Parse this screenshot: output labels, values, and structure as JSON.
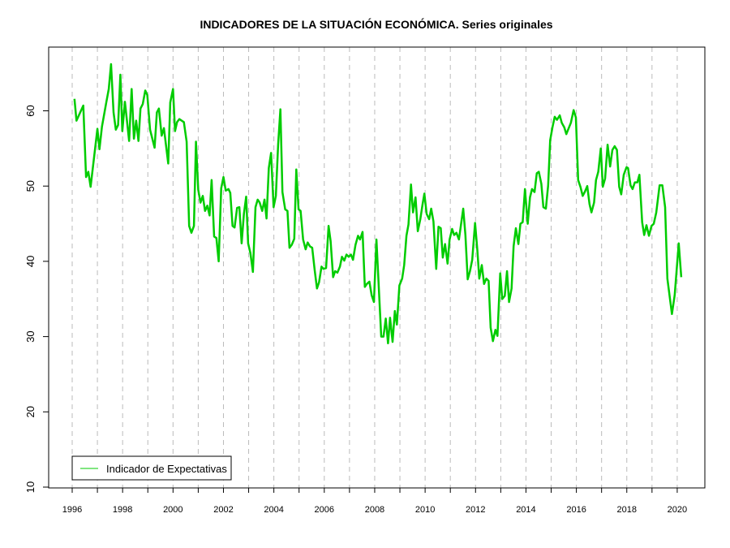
{
  "chart_data": {
    "type": "line",
    "title": "INDICADORES DE LA SITUACIÓN ECONÓMICA. Series originales",
    "xlabel": "",
    "ylabel": "",
    "xlim": [
      1995.06,
      2021.08
    ],
    "ylim": [
      10,
      68.6
    ],
    "x_ticks": [
      1996,
      1997,
      1998,
      1999,
      2000,
      2001,
      2002,
      2003,
      2004,
      2005,
      2006,
      2007,
      2008,
      2009,
      2010,
      2011,
      2012,
      2013,
      2014,
      2015,
      2016,
      2017,
      2018,
      2019,
      2020
    ],
    "x_tick_labels": [
      "1996",
      "1998",
      "2000",
      "2002",
      "2004",
      "2006",
      "2008",
      "2010",
      "2012",
      "2014",
      "2016",
      "2018",
      "2020"
    ],
    "y_ticks": [
      10,
      20,
      30,
      40,
      50,
      60
    ],
    "y_tick_labels": [
      "10",
      "20",
      "30",
      "40",
      "50",
      "60"
    ],
    "grid": "vertical dashed at each year",
    "legend": {
      "position": "bottom-left",
      "entries": [
        "Indicador de Expectativas"
      ]
    },
    "series": [
      {
        "name": "Indicador de Expectativas",
        "color": "#00cc00",
        "points": [
          [
            1996.09,
            61.6
          ],
          [
            1996.17,
            58.7
          ],
          [
            1996.44,
            60.7
          ],
          [
            1996.55,
            51.2
          ],
          [
            1996.64,
            51.9
          ],
          [
            1996.73,
            49.9
          ],
          [
            1997.0,
            57.6
          ],
          [
            1997.08,
            54.9
          ],
          [
            1997.18,
            57.9
          ],
          [
            1997.35,
            61.1
          ],
          [
            1997.45,
            62.9
          ],
          [
            1997.54,
            66.2
          ],
          [
            1997.64,
            59.8
          ],
          [
            1997.73,
            57.5
          ],
          [
            1997.82,
            58.1
          ],
          [
            1997.91,
            64.8
          ],
          [
            1997.99,
            57.3
          ],
          [
            1998.09,
            61.2
          ],
          [
            1998.26,
            56.0
          ],
          [
            1998.36,
            62.9
          ],
          [
            1998.45,
            56.3
          ],
          [
            1998.54,
            58.7
          ],
          [
            1998.63,
            56.0
          ],
          [
            1998.71,
            60.3
          ],
          [
            1998.8,
            60.9
          ],
          [
            1998.9,
            62.7
          ],
          [
            1998.98,
            62.1
          ],
          [
            1999.09,
            57.5
          ],
          [
            1999.27,
            55.1
          ],
          [
            1999.36,
            59.8
          ],
          [
            1999.44,
            60.3
          ],
          [
            1999.55,
            56.7
          ],
          [
            1999.64,
            57.7
          ],
          [
            1999.81,
            53.0
          ],
          [
            1999.89,
            61.1
          ],
          [
            2000.0,
            62.9
          ],
          [
            2000.08,
            57.3
          ],
          [
            2000.16,
            58.5
          ],
          [
            2000.25,
            58.9
          ],
          [
            2000.43,
            58.5
          ],
          [
            2000.54,
            55.9
          ],
          [
            2000.64,
            44.7
          ],
          [
            2000.73,
            43.8
          ],
          [
            2000.83,
            44.7
          ],
          [
            2000.91,
            55.9
          ],
          [
            2001.0,
            49.5
          ],
          [
            2001.09,
            47.8
          ],
          [
            2001.18,
            48.7
          ],
          [
            2001.27,
            46.7
          ],
          [
            2001.36,
            47.4
          ],
          [
            2001.45,
            46.1
          ],
          [
            2001.53,
            50.8
          ],
          [
            2001.63,
            43.3
          ],
          [
            2001.72,
            43.1
          ],
          [
            2001.81,
            40.0
          ],
          [
            2001.91,
            49.7
          ],
          [
            2002.0,
            51.2
          ],
          [
            2002.09,
            49.4
          ],
          [
            2002.2,
            49.6
          ],
          [
            2002.27,
            49.1
          ],
          [
            2002.36,
            44.7
          ],
          [
            2002.44,
            44.5
          ],
          [
            2002.54,
            47.1
          ],
          [
            2002.63,
            47.2
          ],
          [
            2002.72,
            42.4
          ],
          [
            2002.81,
            46.3
          ],
          [
            2002.9,
            48.6
          ],
          [
            2002.98,
            42.4
          ],
          [
            2003.07,
            41.1
          ],
          [
            2003.17,
            38.6
          ],
          [
            2003.27,
            47.2
          ],
          [
            2003.36,
            48.2
          ],
          [
            2003.44,
            47.8
          ],
          [
            2003.54,
            46.7
          ],
          [
            2003.63,
            48.2
          ],
          [
            2003.71,
            45.7
          ],
          [
            2003.8,
            52.4
          ],
          [
            2003.89,
            54.4
          ],
          [
            2003.99,
            47.2
          ],
          [
            2004.08,
            48.7
          ],
          [
            2004.17,
            55.5
          ],
          [
            2004.26,
            60.2
          ],
          [
            2004.34,
            49.2
          ],
          [
            2004.45,
            46.9
          ],
          [
            2004.54,
            46.7
          ],
          [
            2004.62,
            41.8
          ],
          [
            2004.71,
            42.2
          ],
          [
            2004.81,
            43.0
          ],
          [
            2004.89,
            52.2
          ],
          [
            2004.98,
            46.9
          ],
          [
            2005.06,
            46.7
          ],
          [
            2005.16,
            42.9
          ],
          [
            2005.26,
            41.6
          ],
          [
            2005.34,
            42.5
          ],
          [
            2005.43,
            42.0
          ],
          [
            2005.52,
            41.8
          ],
          [
            2005.62,
            38.8
          ],
          [
            2005.71,
            36.4
          ],
          [
            2005.79,
            37.2
          ],
          [
            2005.89,
            39.3
          ],
          [
            2005.97,
            39.0
          ],
          [
            2006.07,
            39.1
          ],
          [
            2006.17,
            44.7
          ],
          [
            2006.25,
            42.7
          ],
          [
            2006.35,
            37.9
          ],
          [
            2006.43,
            38.7
          ],
          [
            2006.52,
            38.5
          ],
          [
            2006.62,
            39.3
          ],
          [
            2006.7,
            40.6
          ],
          [
            2006.79,
            40.1
          ],
          [
            2006.88,
            40.9
          ],
          [
            2006.97,
            40.6
          ],
          [
            2007.06,
            40.9
          ],
          [
            2007.14,
            40.2
          ],
          [
            2007.24,
            42.2
          ],
          [
            2007.34,
            43.4
          ],
          [
            2007.42,
            42.9
          ],
          [
            2007.52,
            43.9
          ],
          [
            2007.61,
            36.6
          ],
          [
            2007.69,
            37.0
          ],
          [
            2007.79,
            37.3
          ],
          [
            2007.88,
            35.5
          ],
          [
            2007.97,
            34.6
          ],
          [
            2008.07,
            42.9
          ],
          [
            2008.26,
            30.0
          ],
          [
            2008.35,
            30.0
          ],
          [
            2008.44,
            32.4
          ],
          [
            2008.53,
            29.1
          ],
          [
            2008.61,
            32.5
          ],
          [
            2008.71,
            29.3
          ],
          [
            2008.8,
            33.4
          ],
          [
            2008.88,
            31.6
          ],
          [
            2008.98,
            36.8
          ],
          [
            2009.09,
            37.7
          ],
          [
            2009.17,
            39.5
          ],
          [
            2009.26,
            43.4
          ],
          [
            2009.34,
            44.9
          ],
          [
            2009.44,
            50.2
          ],
          [
            2009.52,
            46.5
          ],
          [
            2009.62,
            48.5
          ],
          [
            2009.71,
            44.0
          ],
          [
            2009.81,
            45.6
          ],
          [
            2009.9,
            47.6
          ],
          [
            2009.97,
            49.0
          ],
          [
            2010.06,
            46.3
          ],
          [
            2010.16,
            45.6
          ],
          [
            2010.24,
            47.0
          ],
          [
            2010.33,
            45.3
          ],
          [
            2010.44,
            39.0
          ],
          [
            2010.53,
            44.6
          ],
          [
            2010.62,
            44.4
          ],
          [
            2010.7,
            40.5
          ],
          [
            2010.79,
            42.3
          ],
          [
            2010.89,
            39.7
          ],
          [
            2010.97,
            42.9
          ],
          [
            2011.07,
            44.3
          ],
          [
            2011.15,
            43.5
          ],
          [
            2011.24,
            43.8
          ],
          [
            2011.34,
            42.9
          ],
          [
            2011.51,
            47.0
          ],
          [
            2011.6,
            43.5
          ],
          [
            2011.69,
            37.6
          ],
          [
            2011.78,
            38.7
          ],
          [
            2011.87,
            40.2
          ],
          [
            2011.98,
            45.1
          ],
          [
            2012.07,
            41.5
          ],
          [
            2012.15,
            37.7
          ],
          [
            2012.25,
            39.5
          ],
          [
            2012.34,
            37.0
          ],
          [
            2012.43,
            37.7
          ],
          [
            2012.52,
            37.4
          ],
          [
            2012.6,
            31.2
          ],
          [
            2012.69,
            29.4
          ],
          [
            2012.79,
            30.9
          ],
          [
            2012.87,
            30.1
          ],
          [
            2012.98,
            38.4
          ],
          [
            2013.06,
            35.0
          ],
          [
            2013.16,
            35.4
          ],
          [
            2013.25,
            38.7
          ],
          [
            2013.33,
            34.6
          ],
          [
            2013.43,
            36.4
          ],
          [
            2013.51,
            42.0
          ],
          [
            2013.6,
            44.4
          ],
          [
            2013.7,
            42.3
          ],
          [
            2013.78,
            45.0
          ],
          [
            2013.87,
            45.2
          ],
          [
            2013.96,
            49.6
          ],
          [
            2014.07,
            45.0
          ],
          [
            2014.16,
            48.5
          ],
          [
            2014.24,
            49.6
          ],
          [
            2014.34,
            49.2
          ],
          [
            2014.43,
            51.7
          ],
          [
            2014.51,
            51.9
          ],
          [
            2014.61,
            50.3
          ],
          [
            2014.69,
            47.2
          ],
          [
            2014.79,
            47.0
          ],
          [
            2014.88,
            50.1
          ],
          [
            2014.96,
            56.1
          ],
          [
            2015.05,
            57.8
          ],
          [
            2015.14,
            59.2
          ],
          [
            2015.23,
            58.8
          ],
          [
            2015.34,
            59.4
          ],
          [
            2015.42,
            58.4
          ],
          [
            2015.52,
            57.8
          ],
          [
            2015.6,
            56.9
          ],
          [
            2015.78,
            58.4
          ],
          [
            2015.89,
            60.1
          ],
          [
            2015.98,
            59.1
          ],
          [
            2016.07,
            50.8
          ],
          [
            2016.16,
            49.9
          ],
          [
            2016.25,
            48.7
          ],
          [
            2016.33,
            49.2
          ],
          [
            2016.43,
            50.0
          ],
          [
            2016.52,
            47.6
          ],
          [
            2016.6,
            46.5
          ],
          [
            2016.7,
            47.8
          ],
          [
            2016.78,
            50.8
          ],
          [
            2016.87,
            51.9
          ],
          [
            2016.97,
            55.0
          ],
          [
            2017.05,
            49.9
          ],
          [
            2017.14,
            51.0
          ],
          [
            2017.24,
            55.5
          ],
          [
            2017.34,
            52.6
          ],
          [
            2017.43,
            54.8
          ],
          [
            2017.52,
            55.3
          ],
          [
            2017.61,
            54.8
          ],
          [
            2017.7,
            49.9
          ],
          [
            2017.78,
            48.9
          ],
          [
            2017.88,
            51.5
          ],
          [
            2017.99,
            52.5
          ],
          [
            2018.05,
            52.4
          ],
          [
            2018.15,
            50.1
          ],
          [
            2018.23,
            49.6
          ],
          [
            2018.32,
            50.5
          ],
          [
            2018.42,
            50.5
          ],
          [
            2018.5,
            51.5
          ],
          [
            2018.61,
            45.2
          ],
          [
            2018.69,
            43.5
          ],
          [
            2018.78,
            44.8
          ],
          [
            2018.88,
            43.4
          ],
          [
            2018.98,
            44.7
          ],
          [
            2019.07,
            45.0
          ],
          [
            2019.17,
            46.5
          ],
          [
            2019.3,
            50.1
          ],
          [
            2019.41,
            50.1
          ],
          [
            2019.52,
            47.2
          ],
          [
            2019.61,
            37.7
          ],
          [
            2019.79,
            33.0
          ],
          [
            2019.9,
            35.5
          ],
          [
            2020.06,
            42.4
          ],
          [
            2020.16,
            37.9
          ]
        ]
      }
    ]
  }
}
